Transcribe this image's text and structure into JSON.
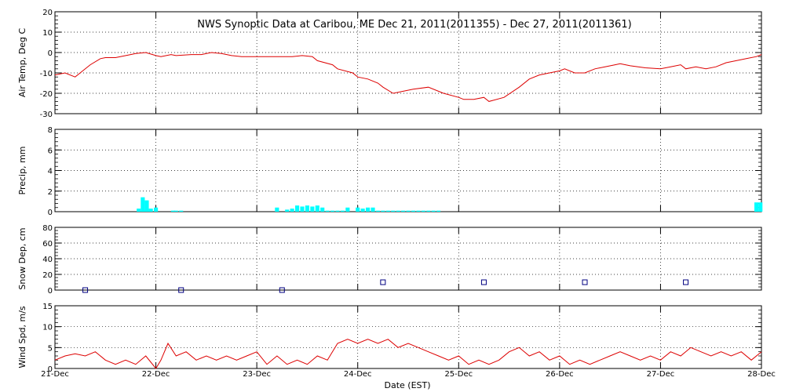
{
  "title": "NWS Synoptic Data at Caribou, ME   Dec 21, 2011(2011355) - Dec 27, 2011(2011361)",
  "xlabel": "Date (EST)",
  "x_ticks": [
    "21-Dec",
    "22-Dec",
    "23-Dec",
    "24-Dec",
    "25-Dec",
    "26-Dec",
    "27-Dec",
    "28-Dec"
  ],
  "colors": {
    "temperature": "#dd0000",
    "precip": "#00ffff",
    "snow": "#000080",
    "wind": "#dd0000",
    "grid": "#000000"
  },
  "chart_data": [
    {
      "type": "line",
      "ylabel": "Air Temp, Deg C",
      "x_unit": "days since 21-Dec 00:00 EST",
      "ylim": [
        -30,
        20
      ],
      "yticks": [
        "20",
        "10",
        "0",
        "-10",
        "-20",
        "-30"
      ],
      "grid": true,
      "series": [
        {
          "name": "Air Temp",
          "x": [
            0,
            0.1,
            0.2,
            0.25,
            0.35,
            0.45,
            0.5,
            0.6,
            0.75,
            0.8,
            0.9,
            1.0,
            1.05,
            1.15,
            1.2,
            1.35,
            1.45,
            1.55,
            1.65,
            1.75,
            1.85,
            2.0,
            2.15,
            2.35,
            2.45,
            2.55,
            2.6,
            2.75,
            2.8,
            2.95,
            3.0,
            3.1,
            3.2,
            3.25,
            3.35,
            3.45,
            3.55,
            3.7,
            3.85,
            4.0,
            4.05,
            4.15,
            4.25,
            4.3,
            4.45,
            4.6,
            4.7,
            4.8,
            4.9,
            5.0,
            5.05,
            5.15,
            5.25,
            5.35,
            5.45,
            5.55,
            5.6,
            5.7,
            5.85,
            6.0,
            6.1,
            6.2,
            6.25,
            6.35,
            6.45,
            6.55,
            6.65,
            6.75,
            6.85,
            6.95,
            7.0
          ],
          "values": [
            -11,
            -10,
            -12,
            -10,
            -6,
            -3,
            -2.5,
            -2.5,
            -1,
            -0.5,
            0,
            -1.5,
            -2,
            -1,
            -1.5,
            -1,
            -1,
            0,
            -0.5,
            -1.5,
            -2,
            -2,
            -2,
            -2,
            -1.5,
            -2,
            -4,
            -6,
            -8,
            -10,
            -12,
            -13,
            -15,
            -17,
            -20,
            -19,
            -18,
            -17,
            -20,
            -22,
            -23,
            -23,
            -22,
            -24,
            -22,
            -17,
            -13,
            -11,
            -10,
            -9,
            -8,
            -10,
            -10,
            -8,
            -7,
            -6,
            -5.5,
            -6.5,
            -7.5,
            -8,
            -7,
            -6,
            -8,
            -7,
            -8,
            -7,
            -5,
            -4,
            -3,
            -2,
            -1
          ]
        }
      ]
    },
    {
      "type": "bar",
      "ylabel": "Precip, mm",
      "x_unit": "days since 21-Dec 00:00 EST",
      "ylim": [
        0,
        8
      ],
      "yticks": [
        "8",
        "6",
        "4",
        "2",
        "0"
      ],
      "grid": true,
      "series": [
        {
          "name": "Precip",
          "x": [
            0.83,
            0.87,
            0.91,
            0.95,
            1.0,
            1.17,
            1.2,
            1.25,
            2.2,
            2.3,
            2.35,
            2.4,
            2.45,
            2.5,
            2.55,
            2.6,
            2.65,
            2.7,
            2.75,
            2.8,
            2.85,
            2.9,
            3.0,
            3.05,
            3.1,
            3.15,
            3.2,
            3.25,
            3.3,
            3.35,
            3.4,
            3.45,
            3.5,
            3.55,
            3.6,
            3.65,
            3.7,
            3.75,
            3.8,
            6.95,
            6.99
          ],
          "values": [
            0.3,
            1.4,
            1.1,
            0.3,
            0.4,
            0.1,
            0.1,
            0.1,
            0.4,
            0.2,
            0.3,
            0.6,
            0.5,
            0.6,
            0.5,
            0.6,
            0.4,
            0.1,
            0.1,
            0.1,
            0.1,
            0.4,
            0.4,
            0.3,
            0.4,
            0.4,
            0.1,
            0.1,
            0.1,
            0.1,
            0.1,
            0.1,
            0.1,
            0.1,
            0.1,
            0.1,
            0.1,
            0.1,
            0.1,
            0.9,
            0.9
          ]
        }
      ]
    },
    {
      "type": "scatter",
      "ylabel": "Snow Dep, cm",
      "x_unit": "days since 21-Dec 00:00 EST",
      "ylim": [
        0,
        80
      ],
      "yticks": [
        "80",
        "60",
        "40",
        "20",
        "0"
      ],
      "grid": true,
      "series": [
        {
          "name": "Snow Depth",
          "x": [
            0.3,
            1.25,
            2.25,
            3.25,
            4.25,
            5.25,
            6.25
          ],
          "values": [
            0,
            0,
            0,
            10,
            10,
            10,
            10
          ]
        }
      ]
    },
    {
      "type": "line",
      "ylabel": "Wind Spd, m/s",
      "x_unit": "days since 21-Dec 00:00 EST",
      "ylim": [
        0,
        15
      ],
      "yticks": [
        "15",
        "10",
        "5",
        "0"
      ],
      "grid": true,
      "series": [
        {
          "name": "Wind Speed",
          "x": [
            0,
            0.1,
            0.2,
            0.3,
            0.4,
            0.5,
            0.6,
            0.7,
            0.8,
            0.9,
            1.0,
            1.05,
            1.12,
            1.2,
            1.3,
            1.4,
            1.5,
            1.6,
            1.7,
            1.8,
            1.9,
            2.0,
            2.1,
            2.2,
            2.3,
            2.4,
            2.5,
            2.6,
            2.7,
            2.8,
            2.9,
            3.0,
            3.1,
            3.2,
            3.3,
            3.4,
            3.5,
            3.6,
            3.7,
            3.8,
            3.9,
            4.0,
            4.1,
            4.2,
            4.3,
            4.4,
            4.5,
            4.6,
            4.7,
            4.8,
            4.9,
            5.0,
            5.1,
            5.2,
            5.3,
            5.4,
            5.5,
            5.6,
            5.7,
            5.8,
            5.9,
            6.0,
            6.1,
            6.2,
            6.3,
            6.4,
            6.5,
            6.6,
            6.7,
            6.8,
            6.9,
            7.0
          ],
          "values": [
            2,
            3,
            3.5,
            3,
            4,
            2,
            1,
            2,
            1,
            3,
            0,
            2,
            6,
            3,
            4,
            2,
            3,
            2,
            3,
            2,
            3,
            4,
            1,
            3,
            1,
            2,
            1,
            3,
            2,
            6,
            7,
            6,
            7,
            6,
            7,
            5,
            6,
            5,
            4,
            3,
            2,
            3,
            1,
            2,
            1,
            2,
            4,
            5,
            3,
            4,
            2,
            3,
            1,
            2,
            1,
            2,
            3,
            4,
            3,
            2,
            3,
            2,
            4,
            3,
            5,
            4,
            3,
            4,
            3,
            4,
            2,
            4
          ]
        }
      ]
    }
  ]
}
